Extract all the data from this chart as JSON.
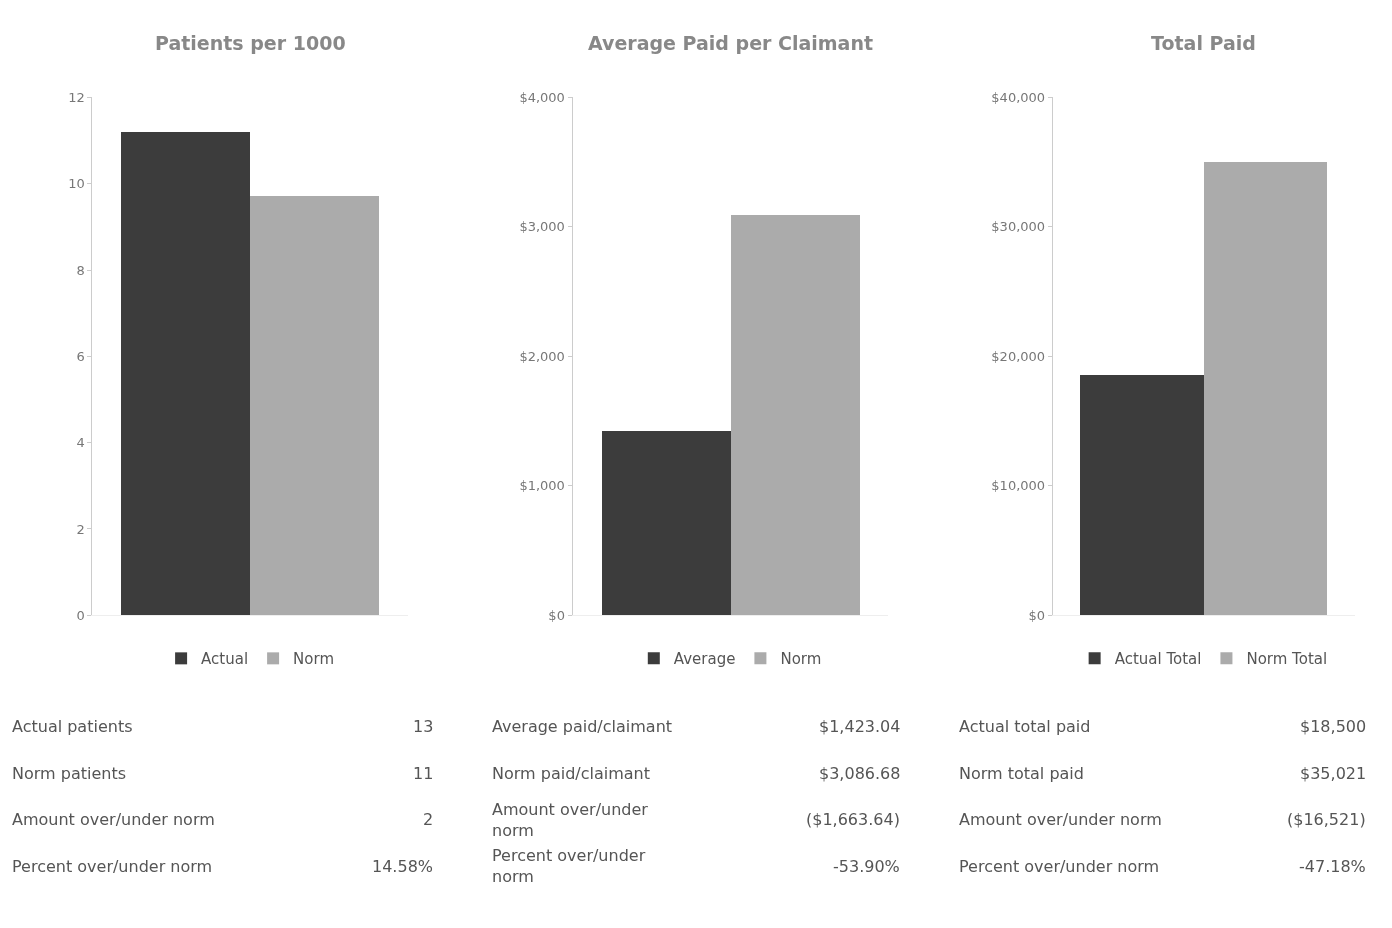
{
  "chart_data": [
    {
      "type": "bar",
      "title": "Patients per 1000",
      "categories": [
        null
      ],
      "ylim": [
        0,
        12
      ],
      "yticks": [
        0,
        2,
        4,
        6,
        8,
        10,
        12
      ],
      "legend": "bottom",
      "series": [
        {
          "name": "Actual",
          "color": "#3c3c3c",
          "values": [
            11.2
          ]
        },
        {
          "name": "Norm",
          "color": "#ababab",
          "values": [
            9.7
          ]
        }
      ],
      "annotations": [
        "Actual patients",
        "13",
        "Norm patients",
        "11",
        "Amount over/under norm",
        "2",
        "Percent over/under norm",
        "14.58%"
      ]
    },
    {
      "type": "bar",
      "title": "Average Paid per Claimant",
      "categories": [
        null
      ],
      "ylim": [
        0,
        4000
      ],
      "yticks": [
        {
          "value": 0,
          "label": "$0"
        },
        {
          "value": 1000,
          "label": "$1,000"
        },
        {
          "value": 2000,
          "label": "$2,000"
        },
        {
          "value": 3000,
          "label": "$3,000"
        },
        {
          "value": 4000,
          "label": "$4,000"
        }
      ],
      "legend": "bottom",
      "series": [
        {
          "name": "Average",
          "color": "#3c3c3c",
          "values": [
            1420
          ]
        },
        {
          "name": "Norm",
          "color": "#ababab",
          "values": [
            3090
          ]
        }
      ],
      "annotations": [
        "Average paid/claimant",
        "$1,423.04",
        "Norm paid/claimant",
        "$3,086.68",
        "Amount over/under norm",
        "($1,663.64)",
        "Percent over/under norm",
        "-53.90%"
      ]
    },
    {
      "type": "bar",
      "title": "Total Paid",
      "categories": [
        null
      ],
      "ylim": [
        0,
        40000
      ],
      "yticks": [
        {
          "value": 0,
          "label": "$0"
        },
        {
          "value": 10000,
          "label": "$10,000"
        },
        {
          "value": 20000,
          "label": "$20,000"
        },
        {
          "value": 30000,
          "label": "$30,000"
        },
        {
          "value": 40000,
          "label": "$40,000"
        }
      ],
      "legend": "bottom",
      "series": [
        {
          "name": "Actual Total",
          "color": "#3c3c3c",
          "values": [
            18500
          ]
        },
        {
          "name": "Norm Total",
          "color": "#ababab",
          "values": [
            35000
          ]
        }
      ],
      "annotations": [
        "Actual total paid",
        "$18,500",
        "Norm total paid",
        "$35,021",
        "Amount over/under norm",
        "($16,521)",
        "Percent over/under norm",
        "-47.18%"
      ]
    }
  ]
}
